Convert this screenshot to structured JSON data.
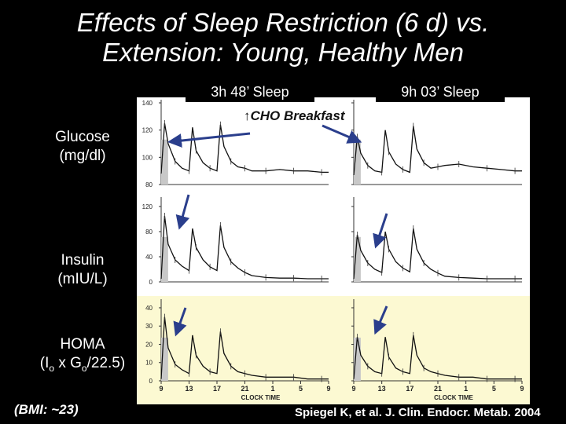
{
  "slide": {
    "title_line1": "Effects of Sleep Restriction (6 d) vs.",
    "title_line2": "Extension: Young, Healthy Men",
    "label_glucose_1": "Glucose",
    "label_glucose_2": "(mg/dl)",
    "label_insulin_1": "Insulin",
    "label_insulin_2": "(mIU/L)",
    "label_homa_1": "HOMA",
    "label_homa_2": "(I",
    "label_homa_sub1": "o",
    "label_homa_mid": " x G",
    "label_homa_sub2": "o",
    "label_homa_end": "/22.5)",
    "bmi_note": "(BMI: ~23)",
    "citation": "Spiegel K, et al. J. Clin. Endocr. Metab. 2004"
  },
  "chart_data": {
    "type": "line",
    "columns": [
      "3h 48’ Sleep",
      "9h 03’ Sleep"
    ],
    "annotation": "↑CHO Breakfast",
    "xlabel": "CLOCK TIME",
    "x_ticks": [
      "9",
      "13",
      "17",
      "21",
      "1",
      "5",
      "9"
    ],
    "rows": [
      {
        "name": "glucose",
        "y_ticks": [
          "140",
          "120",
          "100",
          "80"
        ],
        "ylim": [
          80,
          140
        ]
      },
      {
        "name": "insulin",
        "y_ticks": [
          "120",
          "80",
          "40",
          "0"
        ],
        "ylim": [
          0,
          130
        ]
      },
      {
        "name": "homa",
        "y_ticks": [
          "40",
          "30",
          "20",
          "10",
          "0"
        ],
        "ylim": [
          0,
          43
        ]
      }
    ],
    "x": [
      9,
      9.5,
      10,
      11,
      12,
      13,
      13.5,
      14,
      15,
      16,
      17,
      17.5,
      18,
      19,
      20,
      21,
      22,
      24,
      26,
      28,
      30,
      32,
      33
    ],
    "series": [
      {
        "row": "glucose",
        "column": 0,
        "values": [
          88,
          125,
          110,
          97,
          92,
          90,
          122,
          105,
          96,
          92,
          90,
          124,
          108,
          97,
          93,
          92,
          90,
          90,
          91,
          90,
          90,
          89,
          89
        ]
      },
      {
        "row": "glucose",
        "column": 1,
        "values": [
          87,
          115,
          103,
          94,
          90,
          89,
          120,
          104,
          95,
          91,
          89,
          123,
          106,
          96,
          92,
          93,
          94,
          95,
          93,
          92,
          91,
          90,
          90
        ]
      },
      {
        "row": "insulin",
        "column": 0,
        "values": [
          5,
          105,
          60,
          35,
          25,
          18,
          85,
          55,
          35,
          24,
          18,
          90,
          55,
          32,
          22,
          15,
          10,
          7,
          6,
          6,
          5,
          5,
          5
        ]
      },
      {
        "row": "insulin",
        "column": 1,
        "values": [
          5,
          75,
          50,
          30,
          20,
          15,
          80,
          52,
          32,
          22,
          16,
          85,
          52,
          30,
          20,
          14,
          9,
          7,
          6,
          5,
          5,
          5,
          5
        ]
      },
      {
        "row": "homa",
        "column": 0,
        "values": [
          1,
          35,
          18,
          9,
          6,
          4,
          25,
          14,
          8,
          5,
          4,
          27,
          15,
          8,
          5,
          4,
          3,
          2,
          2,
          2,
          1,
          1,
          1
        ]
      },
      {
        "row": "homa",
        "column": 1,
        "values": [
          1,
          24,
          14,
          8,
          5,
          4,
          24,
          13,
          7,
          5,
          4,
          25,
          14,
          7,
          5,
          4,
          3,
          2,
          2,
          1,
          1,
          1,
          1
        ]
      }
    ]
  }
}
